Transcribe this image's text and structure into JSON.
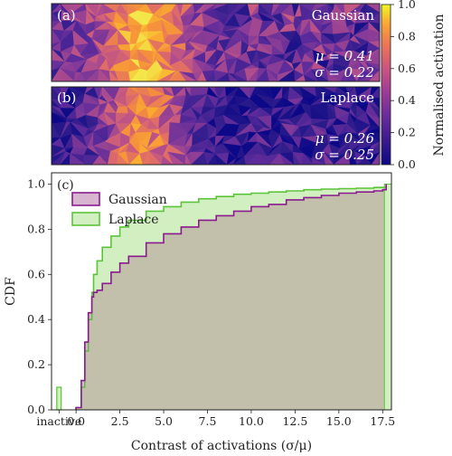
{
  "colors": {
    "gaussian_edge": "#8b1a8f",
    "gaussian_fill": "#d7b5cf",
    "laplace_edge": "#5cc43a",
    "laplace_fill": "#d2efc2",
    "overlap_fill": "#c2bfaa",
    "colormap": [
      "#0d0887",
      "#2a1a8a",
      "#5b2a9a",
      "#8a3c96",
      "#b8508a",
      "#de6a6a",
      "#f58f3c",
      "#fbb32e",
      "#f3e84a"
    ]
  },
  "maps": {
    "a": {
      "label": "(a)",
      "name": "Gaussian",
      "mu": "μ = 0.41",
      "sigma": "σ = 0.22"
    },
    "b": {
      "label": "(b)",
      "name": "Laplace",
      "mu": "μ = 0.26",
      "sigma": "σ = 0.25"
    }
  },
  "colorbar": {
    "label": "Normalised activation",
    "ticks": [
      "0.0",
      "0.2",
      "0.4",
      "0.6",
      "0.8",
      "1.0"
    ],
    "range": [
      0,
      1
    ]
  },
  "chart_data": {
    "type": "area",
    "panel_label": "(c)",
    "xlabel": "Contrast of activations (σ/μ)",
    "ylabel": "CDF",
    "xlim": [
      -1.4,
      18
    ],
    "ylim": [
      0,
      1.05
    ],
    "x_ticks": [
      "inactive",
      "0.0",
      "2.5",
      "5.0",
      "7.5",
      "10.0",
      "12.5",
      "15.0",
      "17.5"
    ],
    "y_ticks": [
      "0.0",
      "0.2",
      "0.4",
      "0.6",
      "0.8",
      "1.0"
    ],
    "legend_position": "top-left",
    "inactive_fraction": 0.1,
    "series": [
      {
        "name": "Gaussian",
        "x": [
          0,
          0.3,
          0.5,
          0.7,
          0.9,
          1.0,
          1.2,
          1.5,
          2.0,
          2.5,
          3,
          4,
          5,
          6,
          7,
          8,
          9,
          10,
          11,
          12,
          13,
          14,
          15,
          16,
          17,
          17.5,
          17.7
        ],
        "y": [
          0.01,
          0.13,
          0.3,
          0.43,
          0.5,
          0.52,
          0.53,
          0.56,
          0.61,
          0.65,
          0.68,
          0.74,
          0.78,
          0.81,
          0.84,
          0.86,
          0.88,
          0.9,
          0.91,
          0.93,
          0.94,
          0.95,
          0.96,
          0.965,
          0.97,
          0.975,
          1.0
        ]
      },
      {
        "name": "Laplace",
        "x": [
          0,
          0.3,
          0.5,
          0.7,
          0.9,
          1.0,
          1.2,
          1.5,
          2.0,
          2.5,
          3,
          4,
          5,
          6,
          7,
          8,
          9,
          10,
          11,
          12,
          13,
          14,
          15,
          16,
          17,
          17.5,
          17.7
        ],
        "y": [
          0.01,
          0.1,
          0.26,
          0.4,
          0.52,
          0.6,
          0.66,
          0.72,
          0.77,
          0.81,
          0.84,
          0.88,
          0.9,
          0.92,
          0.935,
          0.945,
          0.955,
          0.96,
          0.965,
          0.97,
          0.975,
          0.978,
          0.98,
          0.982,
          0.985,
          0.986,
          1.0
        ]
      }
    ]
  }
}
